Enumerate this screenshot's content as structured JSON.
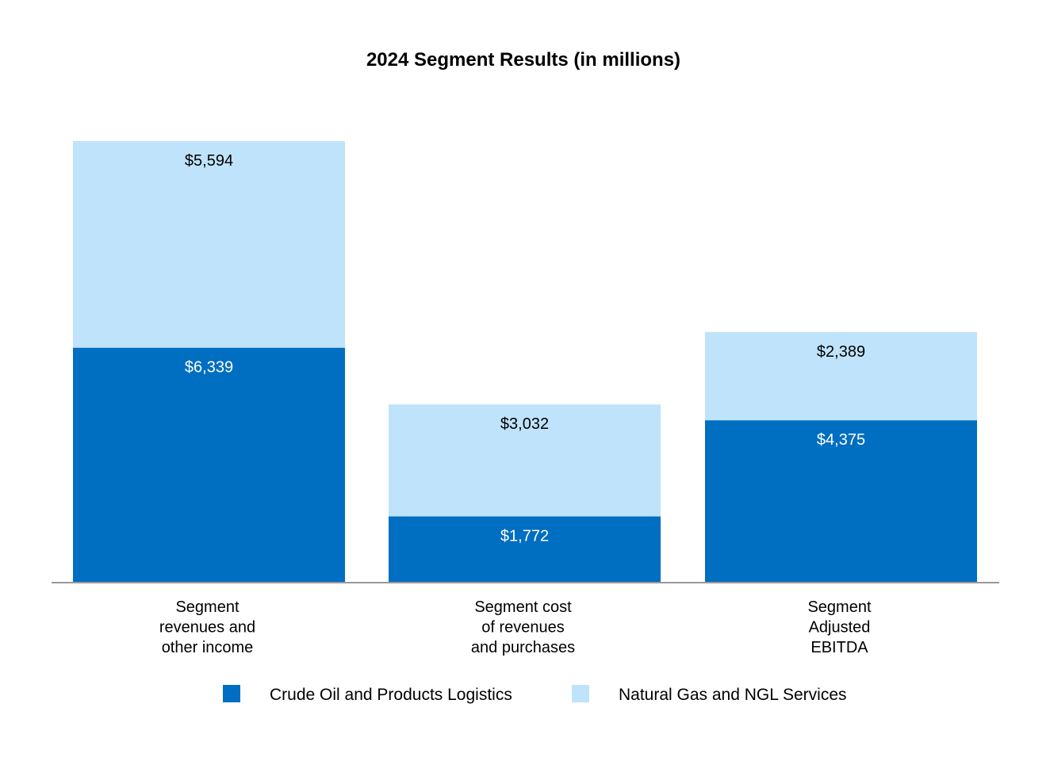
{
  "colors": {
    "crude": "#006ec1",
    "natgas": "#bfe3fb",
    "axis": "#999999",
    "label_on_dark": "#ffffff",
    "label_on_light": "#000000"
  },
  "chart_data": {
    "type": "bar",
    "stacked": true,
    "title": "2024 Segment Results (in millions)",
    "categories": [
      [
        "Segment",
        "revenues and",
        "other income"
      ],
      [
        "Segment cost",
        "of revenues",
        "and purchases"
      ],
      [
        "Segment",
        "Adjusted",
        "EBITDA"
      ]
    ],
    "series": [
      {
        "name": "Crude Oil and Products Logistics",
        "values": [
          6339,
          1772,
          4375
        ],
        "labels": [
          "$6,339",
          "$1,772",
          "$4,375"
        ]
      },
      {
        "name": "Natural Gas and NGL Services",
        "values": [
          5594,
          3032,
          2389
        ],
        "labels": [
          "$5,594",
          "$3,032",
          "$2,389"
        ]
      }
    ],
    "xlabel": "",
    "ylabel": "",
    "ylim": [
      0,
      11933
    ],
    "grid": false,
    "legend": "bottom-center"
  }
}
